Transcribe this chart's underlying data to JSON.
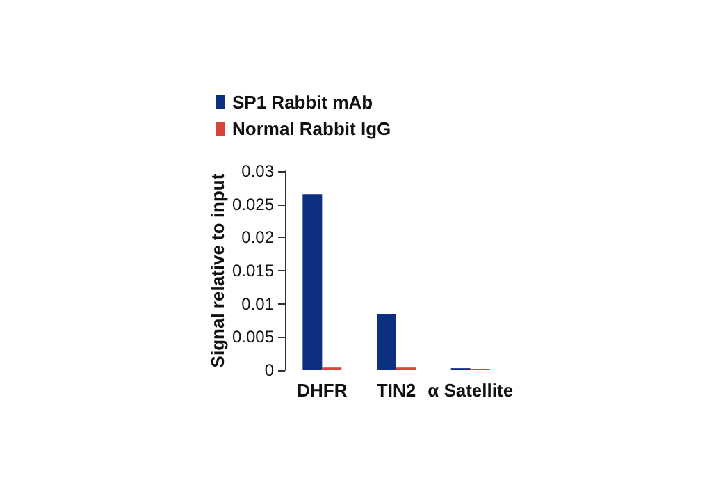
{
  "chart_data": {
    "type": "bar",
    "ylabel": "Signal relative to input",
    "categories": [
      "DHFR",
      "TIN2",
      "α Satellite"
    ],
    "series": [
      {
        "name": "SP1 Rabbit mAb",
        "color": "#0d2f7f",
        "values": [
          0.0265,
          0.0085,
          0.0003
        ]
      },
      {
        "name": "Normal Rabbit IgG",
        "color": "#d9443a",
        "values": [
          0.0004,
          0.0004,
          0.0002
        ]
      }
    ],
    "ylim": [
      0,
      0.03
    ],
    "yticks": [
      0,
      0.005,
      0.01,
      0.015,
      0.02,
      0.025,
      0.03
    ],
    "grid": false,
    "legend": "top left"
  }
}
